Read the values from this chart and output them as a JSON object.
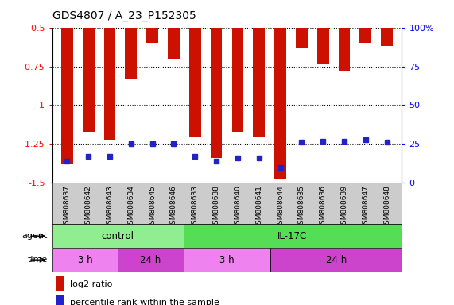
{
  "title": "GDS4807 / A_23_P152305",
  "samples": [
    "GSM808637",
    "GSM808642",
    "GSM808643",
    "GSM808634",
    "GSM808645",
    "GSM808646",
    "GSM808633",
    "GSM808638",
    "GSM808640",
    "GSM808641",
    "GSM808644",
    "GSM808635",
    "GSM808636",
    "GSM808639",
    "GSM808647",
    "GSM808648"
  ],
  "log2_ratio": [
    -1.38,
    -1.17,
    -1.22,
    -0.83,
    -0.6,
    -0.7,
    -1.2,
    -1.34,
    -1.17,
    -1.2,
    -1.47,
    -0.63,
    -0.73,
    -0.78,
    -0.6,
    -0.62
  ],
  "percentile": [
    14,
    17,
    17,
    25,
    25,
    25,
    17,
    14,
    16,
    16,
    10,
    26,
    27,
    27,
    28,
    26
  ],
  "ymin": -1.5,
  "ymax": -0.5,
  "yticks_left": [
    -0.5,
    -0.75,
    -1.0,
    -1.25,
    -1.5
  ],
  "ytick_labels_left": [
    "-0.5",
    "-0.75",
    "-1",
    "-1.25",
    "-1.5"
  ],
  "right_yticks": [
    0,
    25,
    50,
    75,
    100
  ],
  "right_ytick_labels": [
    "0",
    "25",
    "50",
    "75",
    "100%"
  ],
  "group_agent": [
    {
      "label": "control",
      "start": 0,
      "end": 6,
      "color": "#90EE90"
    },
    {
      "label": "IL-17C",
      "start": 6,
      "end": 16,
      "color": "#55DD55"
    }
  ],
  "group_time": [
    {
      "label": "3 h",
      "start": 0,
      "end": 3,
      "color": "#EE82EE"
    },
    {
      "label": "24 h",
      "start": 3,
      "end": 6,
      "color": "#CC44CC"
    },
    {
      "label": "3 h",
      "start": 6,
      "end": 10,
      "color": "#EE82EE"
    },
    {
      "label": "24 h",
      "start": 10,
      "end": 16,
      "color": "#CC44CC"
    }
  ],
  "bar_color": "#CC1100",
  "dot_color": "#2222CC",
  "sample_bg": "#CCCCCC",
  "legend_items": [
    {
      "color": "#CC1100",
      "label": "log2 ratio"
    },
    {
      "color": "#2222CC",
      "label": "percentile rank within the sample"
    }
  ],
  "figsize": [
    5.71,
    3.84
  ],
  "dpi": 100
}
